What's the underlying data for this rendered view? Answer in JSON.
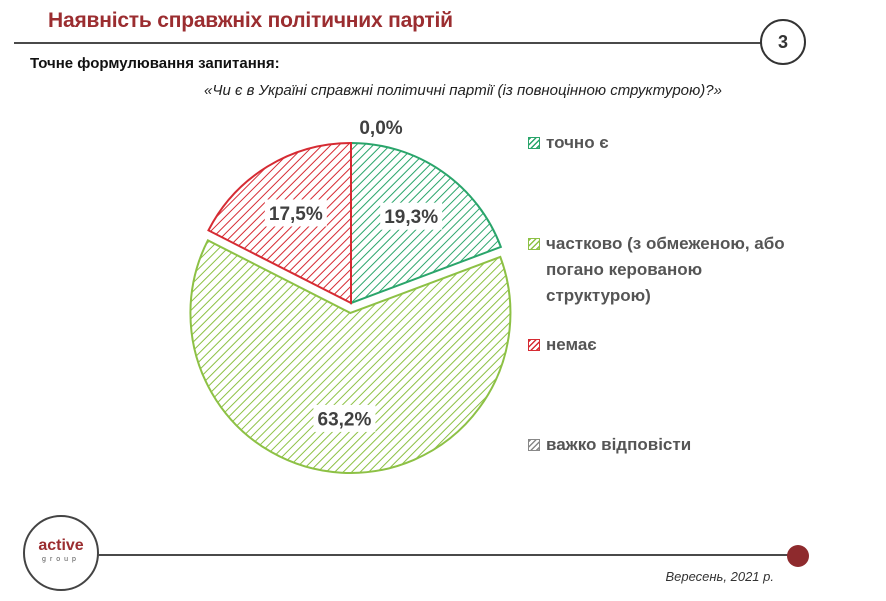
{
  "header": {
    "title": "Наявність справжніх політичних партій",
    "page_number": "3"
  },
  "question": {
    "label": "Точне формулювання  запитання:",
    "text": "«Чи є в Україні справжні політичні партії (із повноцінною структурою)?»"
  },
  "chart_data": {
    "type": "pie",
    "slices": [
      {
        "label": "точно є",
        "value": 19.3,
        "display": "19,3%",
        "color": "#2aa56b",
        "exploded": false
      },
      {
        "label": "частково (з обмеженою, або погано керованою структурою)",
        "value": 63.2,
        "display": "63,2%",
        "color": "#8dc145",
        "exploded": true
      },
      {
        "label": "немає",
        "value": 17.5,
        "display": "17,5%",
        "color": "#d62b33",
        "exploded": false
      },
      {
        "label": "важко відповісти",
        "value": 0.0,
        "display": "0,0%",
        "color": "#888888",
        "exploded": false
      }
    ],
    "fill_pattern": "diagonal-hatch",
    "legend_position": "right"
  },
  "footer": {
    "logo_main": "active",
    "logo_sub": "group",
    "date": "Вересень, 2021 р."
  }
}
